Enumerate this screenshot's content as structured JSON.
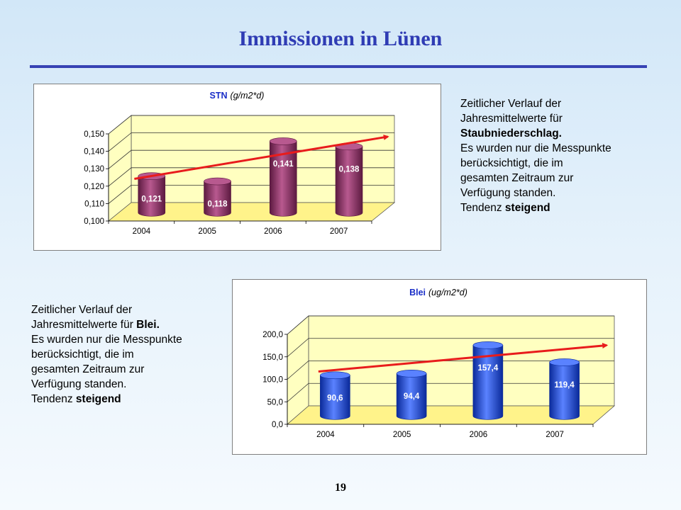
{
  "slide": {
    "title": "Immissionen in Lünen",
    "page_number": "19"
  },
  "text_stn": {
    "line1": "Zeitlicher Verlauf der",
    "line2": "Jahresmittelwerte für",
    "line3_bold": "Staubniederschlag.",
    "line4": "Es wurden nur die Messpunkte",
    "line5": "berücksichtigt, die im",
    "line6": "gesamten Zeitraum zur",
    "line7": "Verfügung standen.",
    "tendency_prefix": "Tendenz ",
    "tendency_bold": "steigend"
  },
  "text_blei": {
    "line1": "Zeitlicher Verlauf der",
    "line2_prefix": "Jahresmittelwerte für ",
    "line2_bold": "Blei.",
    "line3": "Es wurden nur die Messpunkte",
    "line4": "berücksichtigt, die im",
    "line5": "gesamten Zeitraum zur",
    "line6": "Verfügung standen.",
    "tendency_prefix": "Tendenz ",
    "tendency_bold": "steigend"
  },
  "chart_data": [
    {
      "type": "bar",
      "style": "3d-cylinder",
      "title": "STN",
      "title_unit": "(g/m2*d)",
      "categories": [
        "2004",
        "2005",
        "2006",
        "2007"
      ],
      "values": [
        0.121,
        0.118,
        0.141,
        0.138
      ],
      "value_labels": [
        "0,121",
        "0,118",
        "0,141",
        "0,138"
      ],
      "ylim": [
        0.1,
        0.15
      ],
      "yticks": [
        "0,100",
        "0,110",
        "0,120",
        "0,130",
        "0,140",
        "0,150"
      ],
      "trend": [
        0.121,
        0.141
      ],
      "grid": true,
      "colors": {
        "bar": "#8b2c63",
        "bar_dark": "#5c1a40",
        "bar_light": "#b8598f",
        "wall": "#ffffc0",
        "floor": "#fff38a",
        "trend": "#e81c1c"
      }
    },
    {
      "type": "bar",
      "style": "3d-cylinder",
      "title": "Blei",
      "title_unit": "(ug/m2*d)",
      "categories": [
        "2004",
        "2005",
        "2006",
        "2007"
      ],
      "values": [
        90.6,
        94.4,
        157.4,
        119.4
      ],
      "value_labels": [
        "90,6",
        "94,4",
        "157,4",
        "119,4"
      ],
      "ylim": [
        0,
        200
      ],
      "yticks": [
        "0,0",
        "50,0",
        "100,0",
        "150,0",
        "200,0"
      ],
      "trend": [
        105,
        147
      ],
      "grid": true,
      "colors": {
        "bar": "#1447e6",
        "bar_dark": "#0a2a9a",
        "bar_light": "#5a82ff",
        "wall": "#ffffc0",
        "floor": "#fff38a",
        "trend": "#e81c1c"
      }
    }
  ]
}
